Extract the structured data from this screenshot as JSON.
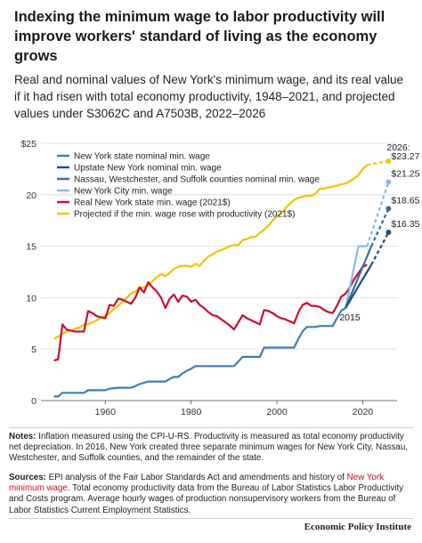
{
  "header": {
    "title": "Indexing the minimum wage to labor productivity will improve workers' standard of living as the economy grows",
    "subtitle": "Real and nominal values of New York's minimum wage, and its real value if it had risen with total economy productivity, 1948–2021, and projected values under S3062C and A7503B, 2022–2026"
  },
  "chart_data": {
    "type": "line",
    "title": "",
    "xlabel": "",
    "ylabel": "",
    "xlim": [
      1945,
      2028
    ],
    "ylim": [
      0,
      25
    ],
    "x_ticks": [
      1960,
      1980,
      2000,
      2020
    ],
    "y_ticks": [
      0,
      5,
      10,
      15,
      20,
      25
    ],
    "y_tick_labels": [
      "0",
      "5",
      "10",
      "15",
      "20",
      "$25"
    ],
    "grid": "horizontal",
    "legend_position": "top-left",
    "series": [
      {
        "name": "New York state nominal min. wage",
        "color": "#3e7cb8",
        "points": [
          [
            1948,
            0.4
          ],
          [
            1949,
            0.4
          ],
          [
            1950,
            0.75
          ],
          [
            1955,
            0.75
          ],
          [
            1956,
            1.0
          ],
          [
            1960,
            1.0
          ],
          [
            1961,
            1.15
          ],
          [
            1963,
            1.25
          ],
          [
            1966,
            1.25
          ],
          [
            1967,
            1.4
          ],
          [
            1968,
            1.6
          ],
          [
            1970,
            1.85
          ],
          [
            1974,
            1.85
          ],
          [
            1975,
            2.1
          ],
          [
            1976,
            2.3
          ],
          [
            1977,
            2.3
          ],
          [
            1978,
            2.65
          ],
          [
            1979,
            2.9
          ],
          [
            1980,
            3.1
          ],
          [
            1981,
            3.35
          ],
          [
            1990,
            3.35
          ],
          [
            1991,
            3.8
          ],
          [
            1992,
            4.25
          ],
          [
            1996,
            4.25
          ],
          [
            1997,
            5.15
          ],
          [
            2004,
            5.15
          ],
          [
            2005,
            6.0
          ],
          [
            2006,
            6.75
          ],
          [
            2007,
            7.15
          ],
          [
            2009,
            7.15
          ],
          [
            2010,
            7.25
          ],
          [
            2013,
            7.25
          ],
          [
            2014,
            8.0
          ],
          [
            2015,
            8.75
          ],
          [
            2016,
            9.0
          ]
        ]
      },
      {
        "name": "Upstate New York nominal min. wage",
        "color": "#1f4e79",
        "points": [
          [
            2016,
            9.0
          ],
          [
            2017,
            9.7
          ],
          [
            2018,
            10.4
          ],
          [
            2019,
            11.1
          ],
          [
            2020,
            11.8
          ],
          [
            2021,
            12.5
          ],
          [
            2022,
            13.2
          ]
        ]
      },
      {
        "name": "Nassau, Westchester, and Suffolk counties nominal min. wage",
        "color": "#2e6fa8",
        "points": [
          [
            2016,
            9.0
          ],
          [
            2017,
            10.0
          ],
          [
            2018,
            11.0
          ],
          [
            2019,
            12.0
          ],
          [
            2020,
            13.0
          ],
          [
            2021,
            14.0
          ],
          [
            2022,
            15.0
          ]
        ]
      },
      {
        "name": "New York City min. wage",
        "color": "#8ab8e6",
        "points": [
          [
            2016,
            9.0
          ],
          [
            2017,
            11.0
          ],
          [
            2018,
            13.0
          ],
          [
            2019,
            15.0
          ],
          [
            2021,
            15.0
          ]
        ]
      },
      {
        "name": "Real New York state min. wage (2021$)",
        "color": "#c8102e",
        "points": [
          [
            1948,
            3.9
          ],
          [
            1949,
            4.0
          ],
          [
            1950,
            7.4
          ],
          [
            1951,
            6.9
          ],
          [
            1952,
            6.8
          ],
          [
            1953,
            6.7
          ],
          [
            1954,
            6.7
          ],
          [
            1955,
            6.7
          ],
          [
            1956,
            8.7
          ],
          [
            1957,
            8.5
          ],
          [
            1958,
            8.2
          ],
          [
            1959,
            8.1
          ],
          [
            1960,
            8.0
          ],
          [
            1961,
            9.3
          ],
          [
            1962,
            9.2
          ],
          [
            1963,
            9.9
          ],
          [
            1964,
            9.8
          ],
          [
            1965,
            9.6
          ],
          [
            1966,
            9.4
          ],
          [
            1967,
            10.0
          ],
          [
            1968,
            11.0
          ],
          [
            1969,
            10.5
          ],
          [
            1970,
            11.5
          ],
          [
            1971,
            11.0
          ],
          [
            1972,
            10.6
          ],
          [
            1973,
            10.0
          ],
          [
            1974,
            9.0
          ],
          [
            1975,
            9.9
          ],
          [
            1976,
            10.3
          ],
          [
            1977,
            9.6
          ],
          [
            1978,
            10.2
          ],
          [
            1979,
            10.1
          ],
          [
            1980,
            9.6
          ],
          [
            1981,
            9.8
          ],
          [
            1982,
            9.3
          ],
          [
            1983,
            9.0
          ],
          [
            1984,
            8.6
          ],
          [
            1985,
            8.3
          ],
          [
            1986,
            8.2
          ],
          [
            1987,
            7.9
          ],
          [
            1988,
            7.6
          ],
          [
            1989,
            7.3
          ],
          [
            1990,
            6.9
          ],
          [
            1991,
            7.6
          ],
          [
            1992,
            8.3
          ],
          [
            1993,
            8.0
          ],
          [
            1994,
            7.8
          ],
          [
            1995,
            7.6
          ],
          [
            1996,
            7.4
          ],
          [
            1997,
            8.8
          ],
          [
            1998,
            8.7
          ],
          [
            1999,
            8.5
          ],
          [
            2000,
            8.2
          ],
          [
            2001,
            8.0
          ],
          [
            2002,
            7.9
          ],
          [
            2003,
            7.7
          ],
          [
            2004,
            7.5
          ],
          [
            2005,
            8.6
          ],
          [
            2006,
            9.3
          ],
          [
            2007,
            9.5
          ],
          [
            2008,
            9.2
          ],
          [
            2009,
            9.2
          ],
          [
            2010,
            9.1
          ],
          [
            2011,
            8.8
          ],
          [
            2012,
            8.6
          ],
          [
            2013,
            8.5
          ],
          [
            2014,
            9.2
          ],
          [
            2015,
            10.1
          ],
          [
            2016,
            10.4
          ],
          [
            2017,
            11.0
          ],
          [
            2018,
            11.8
          ],
          [
            2019,
            12.4
          ],
          [
            2020,
            13.0
          ],
          [
            2021,
            13.2
          ]
        ]
      },
      {
        "name": "Projected if the min. wage rose with productivity (2021$)",
        "color": "#f2c300",
        "points": [
          [
            1948,
            6.0
          ],
          [
            1949,
            6.2
          ],
          [
            1950,
            6.5
          ],
          [
            1951,
            6.7
          ],
          [
            1952,
            6.8
          ],
          [
            1953,
            7.0
          ],
          [
            1954,
            7.1
          ],
          [
            1955,
            7.4
          ],
          [
            1956,
            7.4
          ],
          [
            1957,
            7.6
          ],
          [
            1958,
            7.8
          ],
          [
            1959,
            8.1
          ],
          [
            1960,
            8.2
          ],
          [
            1961,
            8.5
          ],
          [
            1962,
            8.9
          ],
          [
            1963,
            9.2
          ],
          [
            1964,
            9.6
          ],
          [
            1965,
            10.0
          ],
          [
            1966,
            10.4
          ],
          [
            1967,
            10.6
          ],
          [
            1968,
            11.0
          ],
          [
            1969,
            11.0
          ],
          [
            1970,
            11.2
          ],
          [
            1971,
            11.6
          ],
          [
            1972,
            12.0
          ],
          [
            1973,
            12.3
          ],
          [
            1974,
            12.1
          ],
          [
            1975,
            12.4
          ],
          [
            1976,
            12.8
          ],
          [
            1977,
            13.0
          ],
          [
            1978,
            13.1
          ],
          [
            1979,
            13.1
          ],
          [
            1980,
            13.0
          ],
          [
            1981,
            13.3
          ],
          [
            1982,
            13.1
          ],
          [
            1983,
            13.6
          ],
          [
            1984,
            14.0
          ],
          [
            1985,
            14.2
          ],
          [
            1986,
            14.5
          ],
          [
            1987,
            14.6
          ],
          [
            1988,
            14.8
          ],
          [
            1989,
            15.0
          ],
          [
            1990,
            15.1
          ],
          [
            1991,
            15.1
          ],
          [
            1992,
            15.6
          ],
          [
            1993,
            15.7
          ],
          [
            1994,
            15.9
          ],
          [
            1995,
            15.9
          ],
          [
            1996,
            16.3
          ],
          [
            1997,
            16.6
          ],
          [
            1998,
            17.0
          ],
          [
            1999,
            17.5
          ],
          [
            2000,
            17.9
          ],
          [
            2001,
            18.2
          ],
          [
            2002,
            18.7
          ],
          [
            2003,
            19.1
          ],
          [
            2004,
            19.5
          ],
          [
            2005,
            19.7
          ],
          [
            2006,
            19.8
          ],
          [
            2007,
            19.9
          ],
          [
            2008,
            19.9
          ],
          [
            2009,
            20.1
          ],
          [
            2010,
            20.6
          ],
          [
            2011,
            20.6
          ],
          [
            2012,
            20.7
          ],
          [
            2013,
            20.8
          ],
          [
            2014,
            20.9
          ],
          [
            2015,
            21.0
          ],
          [
            2016,
            21.1
          ],
          [
            2017,
            21.3
          ],
          [
            2018,
            21.6
          ],
          [
            2019,
            21.9
          ],
          [
            2020,
            22.5
          ],
          [
            2021,
            22.9
          ]
        ]
      }
    ],
    "projections": [
      {
        "series": "Projected if the min. wage rose with productivity (2021$)",
        "color": "#f2c300",
        "points": [
          [
            2021,
            22.9
          ],
          [
            2026,
            23.27
          ]
        ],
        "end_label": "$23.27"
      },
      {
        "series": "New York City min. wage",
        "color": "#8ab8e6",
        "points": [
          [
            2021,
            15.0
          ],
          [
            2026,
            21.25
          ]
        ],
        "end_label": "$21.25"
      },
      {
        "series": "Nassau, Westchester, and Suffolk counties nominal min. wage",
        "color": "#2e6fa8",
        "points": [
          [
            2022,
            15.0
          ],
          [
            2026,
            18.65
          ]
        ],
        "end_label": "$18.65"
      },
      {
        "series": "Upstate New York nominal min. wage",
        "color": "#1f4e79",
        "points": [
          [
            2022,
            13.2
          ],
          [
            2026,
            16.35
          ]
        ],
        "end_label": "$16.35"
      }
    ],
    "annotations": [
      {
        "text": "2026:",
        "x": 2026,
        "y": 23.27
      },
      {
        "text": "2015",
        "x": 2015,
        "y": 9.0
      }
    ]
  },
  "notes": {
    "label": "Notes:",
    "text": "Inflation measured using the CPI-U-RS. Productivity is measured as total economy productivity net depreciation. In 2016, New York created three separate minimum wages for New York City, Nassau, Westchester, and Suffolk counties, and the remainder of the state."
  },
  "sources": {
    "label": "Sources:",
    "text_before": "EPI analysis of the Fair Labor Standards Act and amendments and history of ",
    "link_text": "New York minimum wage",
    "text_after": ". Total economy productivity data from the Bureau of Labor Statistics Labor Productivity and Costs program. Average hourly wages of production nonsupervisory workers from the Bureau of Labor Statistics Current Employment Statistics."
  },
  "footer": {
    "brand": "Economic Policy Institute"
  }
}
